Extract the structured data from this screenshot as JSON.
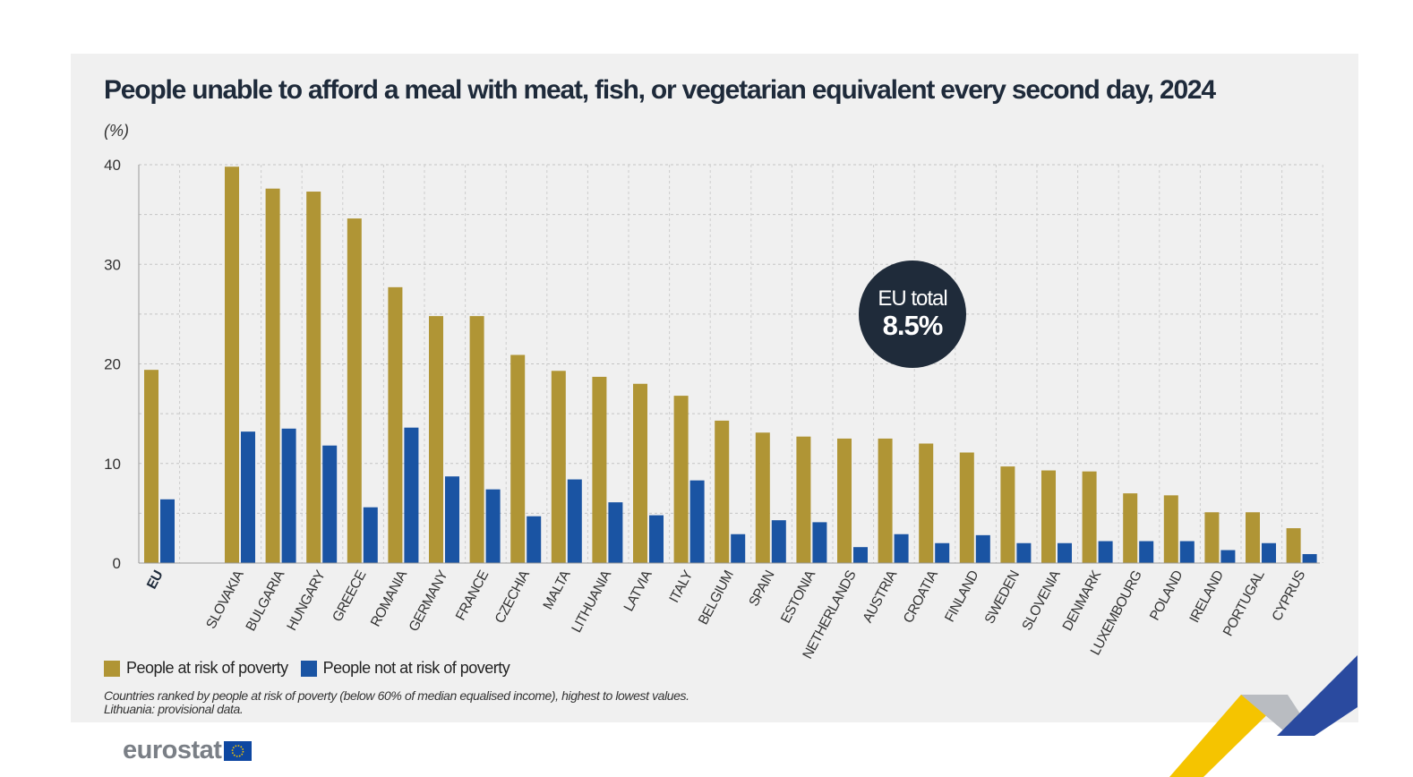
{
  "chart_data": {
    "type": "bar",
    "title": "People unable to afford a meal with meat, fish, or vegetarian equivalent every second day, 2024",
    "ylabel": "(%)",
    "ylim": [
      0,
      40
    ],
    "yticks": [
      "0",
      "10",
      "20",
      "30",
      "40"
    ],
    "grid": true,
    "categories": [
      "EU",
      "SLOVAKIA",
      "BULGARIA",
      "HUNGARY",
      "GREECE",
      "ROMANIA",
      "GERMANY",
      "FRANCE",
      "CZECHIA",
      "MALTA",
      "LITHUANIA",
      "LATVIA",
      "ITALY",
      "BELGIUM",
      "SPAIN",
      "ESTONIA",
      "NETHERLANDS",
      "AUSTRIA",
      "CROATIA",
      "FINLAND",
      "SWEDEN",
      "SLOVENIA",
      "DENMARK",
      "LUXEMBOURG",
      "POLAND",
      "IRELAND",
      "PORTUGAL",
      "CYPRUS"
    ],
    "series": [
      {
        "name": "People at risk of poverty",
        "color": "#b09535",
        "values": [
          19.4,
          39.8,
          37.6,
          37.3,
          34.6,
          27.7,
          24.8,
          24.8,
          20.9,
          19.3,
          18.7,
          18.0,
          16.8,
          14.3,
          13.1,
          12.7,
          12.5,
          12.5,
          12.0,
          11.1,
          9.7,
          9.3,
          9.2,
          7.0,
          6.8,
          5.1,
          5.1,
          3.5
        ]
      },
      {
        "name": "People not at risk of poverty",
        "color": "#1a54a3",
        "values": [
          6.4,
          13.2,
          13.5,
          11.8,
          5.6,
          13.6,
          8.7,
          7.4,
          4.7,
          8.4,
          6.1,
          4.8,
          8.3,
          2.9,
          4.3,
          4.1,
          1.6,
          2.9,
          2.0,
          2.8,
          2.0,
          2.0,
          2.2,
          2.2,
          2.2,
          1.3,
          2.0,
          0.9
        ]
      }
    ],
    "legend": "bottom-left",
    "annotation": {
      "label": "EU total",
      "value": "8.5%"
    }
  },
  "notes": [
    "Countries ranked by people at risk of poverty (below 60% of median equalised income), highest to lowest values.",
    "Lithuania: provisional data."
  ],
  "logo": {
    "text": "eurostat"
  },
  "colors": {
    "panel": "#f0f0f0",
    "title": "#1e2a3a",
    "badge": "#1f2b3a"
  }
}
